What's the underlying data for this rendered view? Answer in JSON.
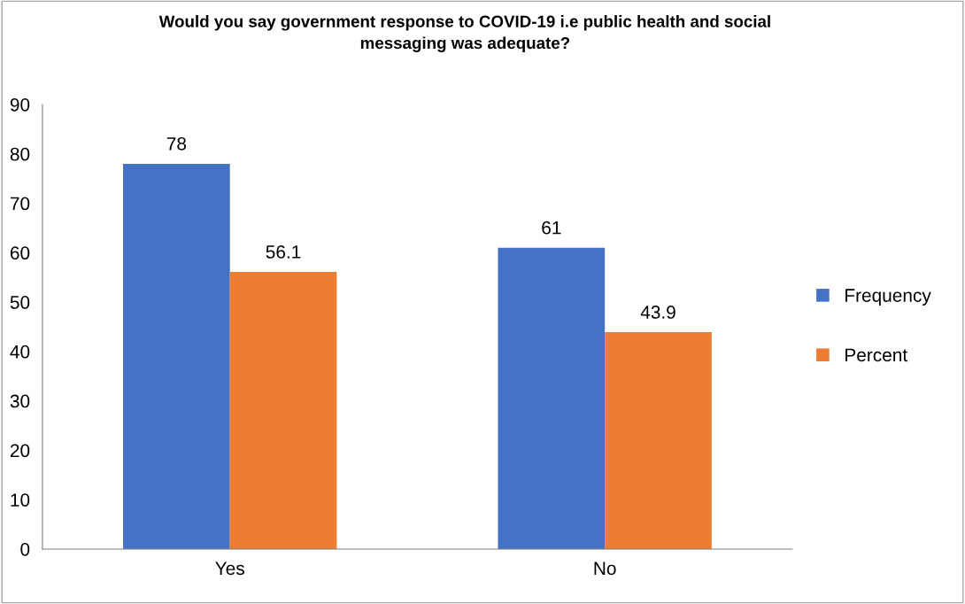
{
  "chart_data": {
    "type": "bar",
    "title": "Would you say government response to COVID-19 i.e public health and social\nmessaging was adequate?",
    "categories": [
      "Yes",
      "No"
    ],
    "series": [
      {
        "name": "Frequency",
        "color": "#4472c4",
        "values": [
          78,
          61
        ]
      },
      {
        "name": "Percent",
        "color": "#ed7d31",
        "values": [
          56.1,
          43.9
        ]
      }
    ],
    "ylim": [
      0,
      90
    ],
    "yticks": [
      0,
      10,
      20,
      30,
      40,
      50,
      60,
      70,
      80,
      90
    ],
    "grid": false,
    "legend": "right",
    "data_labels": true
  }
}
